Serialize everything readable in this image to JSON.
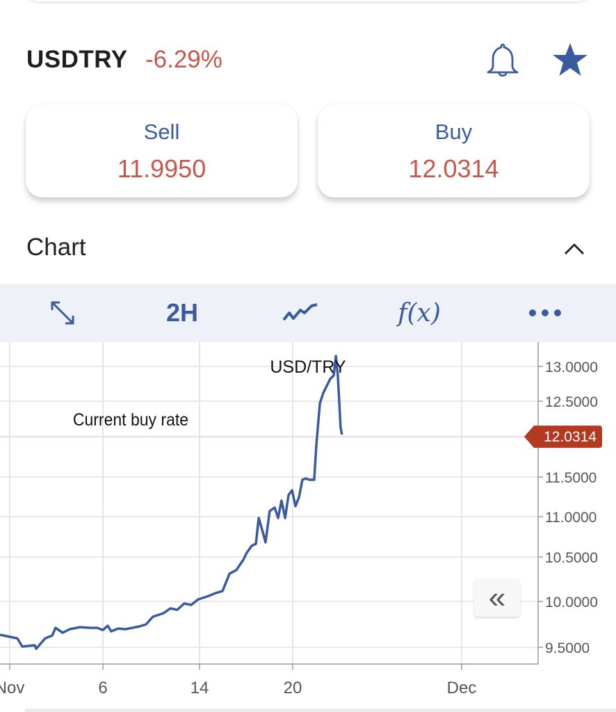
{
  "header": {
    "symbol": "USDTRY",
    "change": "-6.29%",
    "icons": [
      "bell-icon",
      "star-icon"
    ]
  },
  "quotes": {
    "sell": {
      "label": "Sell",
      "value": "11.9950"
    },
    "buy": {
      "label": "Buy",
      "value": "12.0314"
    }
  },
  "chart_section": {
    "title": "Chart",
    "toggle_icon": "chevron-up-icon"
  },
  "toolbar": {
    "expand_icon": "expand-arrows-icon",
    "interval": "2H",
    "chart_type_icon": "line-chart-icon",
    "indicators": "f(x)",
    "more_icon": "more-dots-icon"
  },
  "colors": {
    "accent": "#3a5aa0",
    "negative": "#c8574a",
    "line": "#3a5aa0",
    "price_tag": "#b23a22",
    "toolbar_bg": "#eef2f8"
  },
  "chart_data": {
    "type": "line",
    "title": "USD/TRY",
    "annotation": "Current buy rate",
    "current_value": 12.0314,
    "current_value_label": "12.0314",
    "x_ticks": [
      {
        "day": 1,
        "label": "Nov"
      },
      {
        "day": 6,
        "label": "6"
      },
      {
        "day": 14,
        "label": "14"
      },
      {
        "day": 20,
        "label": "20"
      },
      {
        "day": 31,
        "label": "Dec"
      }
    ],
    "y_ticks": [
      {
        "value": 13.0,
        "label": "13.0000"
      },
      {
        "value": 12.5,
        "label": "12.5000"
      },
      {
        "value": 11.5,
        "label": "11.5000"
      },
      {
        "value": 11.0,
        "label": "11.0000"
      },
      {
        "value": 10.5,
        "label": "10.5000"
      },
      {
        "value": 10.0,
        "label": "10.0000"
      },
      {
        "value": 9.5,
        "label": "9.5000"
      }
    ],
    "grid": true,
    "x_unit": "day of November",
    "series": [
      {
        "x": [
          0.48,
          0.85,
          1.41,
          1.67,
          2.34,
          2.42,
          2.9,
          3.28,
          3.46,
          3.84,
          4.21,
          4.77,
          5.33,
          5.7,
          6.0,
          6.4,
          6.69,
          7.27,
          7.84,
          8.99,
          9.57,
          10.14,
          11.01,
          11.58,
          12.16,
          12.73,
          13.31,
          13.88,
          14.58,
          15.03,
          15.48,
          15.93,
          16.37,
          16.82,
          17.04,
          17.36,
          17.63,
          17.81,
          18.07,
          18.25,
          18.52,
          18.84,
          19.06,
          19.28,
          19.51,
          19.73,
          19.96,
          20.18,
          20.41,
          20.63,
          20.86,
          21.09,
          21.4,
          21.54,
          21.77,
          21.99,
          22.22,
          22.44,
          22.67,
          22.81,
          22.94,
          23.12,
          23.21
        ],
        "y": [
          9.636,
          9.621,
          9.598,
          9.508,
          9.523,
          9.485,
          9.598,
          9.629,
          9.712,
          9.659,
          9.697,
          9.72,
          9.712,
          9.712,
          9.689,
          9.735,
          9.674,
          9.705,
          9.697,
          9.727,
          9.75,
          9.833,
          9.871,
          9.924,
          9.909,
          9.977,
          9.962,
          10.023,
          10.062,
          10.094,
          10.117,
          10.312,
          10.352,
          10.469,
          10.552,
          10.638,
          10.664,
          10.983,
          10.81,
          10.681,
          11.07,
          11.114,
          10.983,
          11.202,
          10.983,
          11.272,
          11.333,
          11.132,
          11.246,
          11.465,
          11.482,
          11.465,
          11.465,
          11.922,
          12.472,
          12.62,
          12.72,
          12.82,
          12.87,
          13.15,
          12.87,
          12.151,
          12.06
        ]
      }
    ]
  }
}
